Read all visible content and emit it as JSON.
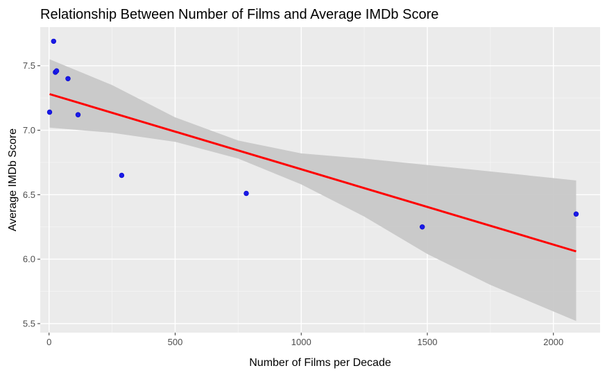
{
  "chart_data": {
    "type": "scatter",
    "title": "Relationship Between Number of Films and Average IMDb Score",
    "xlabel": "Number of Films per Decade",
    "ylabel": "Average IMDb Score",
    "xlim": [
      -35,
      2185
    ],
    "ylim": [
      5.43,
      7.8
    ],
    "x_ticks": [
      0,
      500,
      1000,
      1500,
      2000
    ],
    "x_tick_labels": [
      "0",
      "500",
      "1000",
      "1500",
      "2000"
    ],
    "y_ticks": [
      5.5,
      6.0,
      6.5,
      7.0,
      7.5
    ],
    "y_tick_labels": [
      "5.5",
      "6.0",
      "6.5",
      "7.0",
      "7.5"
    ],
    "grid": true,
    "legend": "none",
    "points": [
      {
        "x": 2,
        "y": 7.14
      },
      {
        "x": 18,
        "y": 7.69
      },
      {
        "x": 25,
        "y": 7.45
      },
      {
        "x": 30,
        "y": 7.46
      },
      {
        "x": 75,
        "y": 7.4
      },
      {
        "x": 115,
        "y": 7.12
      },
      {
        "x": 288,
        "y": 6.65
      },
      {
        "x": 782,
        "y": 6.51
      },
      {
        "x": 1480,
        "y": 6.25
      },
      {
        "x": 2090,
        "y": 6.35
      }
    ],
    "trend_line": {
      "method": "linear",
      "x": [
        2,
        2090
      ],
      "y": [
        7.28,
        6.06
      ]
    },
    "confidence_band": {
      "x": [
        2,
        250,
        500,
        750,
        1000,
        1250,
        1500,
        1750,
        2090
      ],
      "lower": [
        7.02,
        6.98,
        6.91,
        6.78,
        6.58,
        6.33,
        6.04,
        5.8,
        5.52
      ],
      "upper": [
        7.55,
        7.35,
        7.1,
        6.92,
        6.82,
        6.78,
        6.73,
        6.68,
        6.61
      ]
    },
    "colors": {
      "point": "#1a1ae6",
      "point_stroke": "#0000cc",
      "trend_line": "#ff0000",
      "band": "#c8c8c8",
      "panel_background": "#ebebeb",
      "grid_major": "#ffffff",
      "grid_minor": "#f5f5f5",
      "tick_text": "#4d4d4d"
    }
  }
}
